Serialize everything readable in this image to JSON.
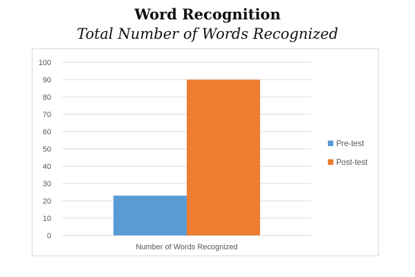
{
  "chart_data": {
    "type": "bar",
    "title": "Word Recognition",
    "subtitle": "Total Number of Words Recognized",
    "categories": [
      "Number of Words Recognized"
    ],
    "series": [
      {
        "name": "Pre-test",
        "values": [
          23
        ],
        "color": "#5b9bd5"
      },
      {
        "name": "Post-test",
        "values": [
          90
        ],
        "color": "#ed7d31"
      }
    ],
    "ylim": [
      0,
      100
    ],
    "yticks": [
      0,
      10,
      20,
      30,
      40,
      50,
      60,
      70,
      80,
      90,
      100
    ],
    "grid": true,
    "legend": "right"
  }
}
